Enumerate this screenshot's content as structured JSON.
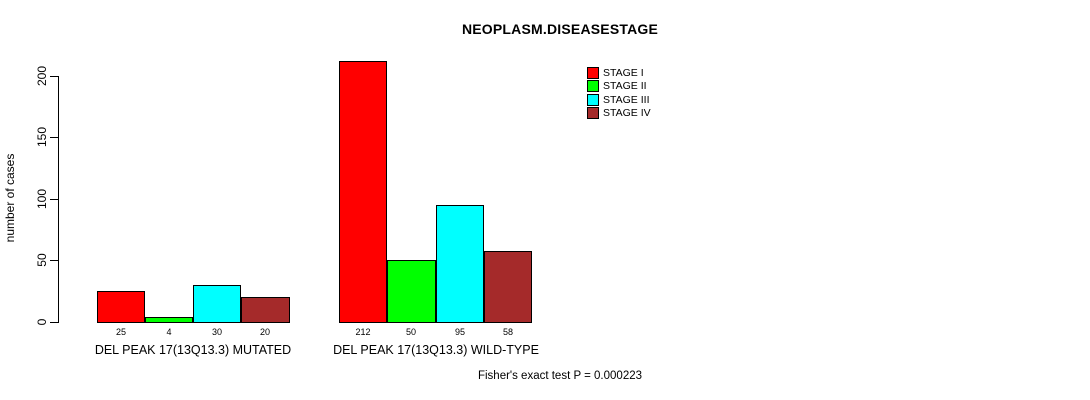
{
  "title": "NEOPLASM.DISEASESTAGE",
  "chart_data": {
    "type": "bar",
    "title": "NEOPLASM.DISEASESTAGE",
    "xlabel": "",
    "ylabel": "number of cases",
    "ylim": [
      0,
      200
    ],
    "yticks": [
      0,
      50,
      100,
      150,
      200
    ],
    "grid": false,
    "legend_position": "top-right",
    "categories": [
      "DEL PEAK 17(13Q13.3) MUTATED",
      "DEL PEAK 17(13Q13.3) WILD-TYPE"
    ],
    "series": [
      {
        "name": "STAGE I",
        "color": "#FF0000",
        "values": [
          25,
          212
        ]
      },
      {
        "name": "STAGE II",
        "color": "#00FF00",
        "values": [
          4,
          50
        ]
      },
      {
        "name": "STAGE III",
        "color": "#00FFFF",
        "values": [
          30,
          95
        ]
      },
      {
        "name": "STAGE IV",
        "color": "#A52A2A",
        "values": [
          20,
          58
        ]
      }
    ],
    "bar_value_labels": [
      [
        "25",
        "4",
        "30",
        "20"
      ],
      [
        "212",
        "50",
        "95",
        "58"
      ]
    ],
    "annotation": "Fisher's exact test P = 0.000223"
  },
  "colors": {
    "background": "#FFFFFF",
    "axis": "#000000",
    "text": "#000000",
    "stage_i": "#FF0000",
    "stage_ii": "#00FF00",
    "stage_iii": "#00FFFF",
    "stage_iv": "#A52A2A"
  }
}
